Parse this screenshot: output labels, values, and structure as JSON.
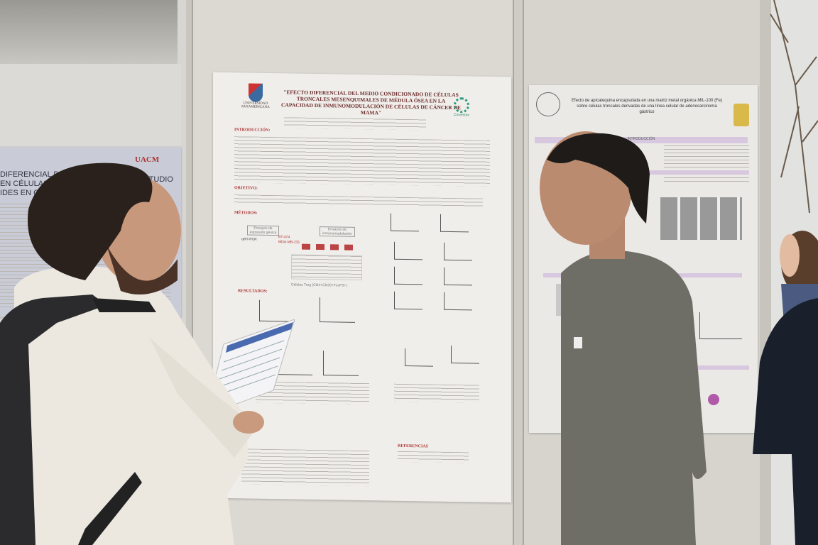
{
  "scene": "poster session",
  "center_poster": {
    "title": "\"EFECTO DIFERENCIAL DEL MEDIO CONDICIONADO DE CÉLULAS TRONCALES MESENQUIMALES DE MÉDULA ÓSEA EN LA CAPACIDAD DE INMUNOMODULACIÓN DE CÉLULAS DE CÁNCER DE MAMA\"",
    "logo_left": "UNIVERSIDAD PANAMERICANA",
    "logo_right": "Cinvestav",
    "sections": [
      "INTRODUCCIÓN:",
      "OBJETIVO:",
      "MÉTODOS:",
      "RESULTADOS:",
      "REFERENCIAS"
    ],
    "figure_labels": [
      "Ensayos de expresión génica",
      "Ensayos de inmunomodulación",
      "BT-474",
      "MDA-MB-231",
      "qRT-PCR",
      "Células Treg (CD4+CD25+FoxP3+)"
    ]
  },
  "right_poster": {
    "title": "Efecto de apicatequina encapsulada en una matriz metal orgánica MIL-100 (Fe) sobre células troncales derivadas de una línea celular de adenocarcinoma gástrico",
    "section": "INTRODUCCIÓN"
  },
  "left_poster": {
    "logo": "UACM",
    "title_fragments": [
      "DIFERENCIAL DE R",
      "EN CÉLULAS ST",
      "ESTUDIO",
      "IDES EN CULTU"
    ]
  },
  "colors": {
    "wall": "#dcd9d3",
    "poster": "#f0eeea",
    "shirt_gray": "#6f6e66",
    "shirt_white": "#ece8e0",
    "title_red": "#6b2b2b"
  }
}
